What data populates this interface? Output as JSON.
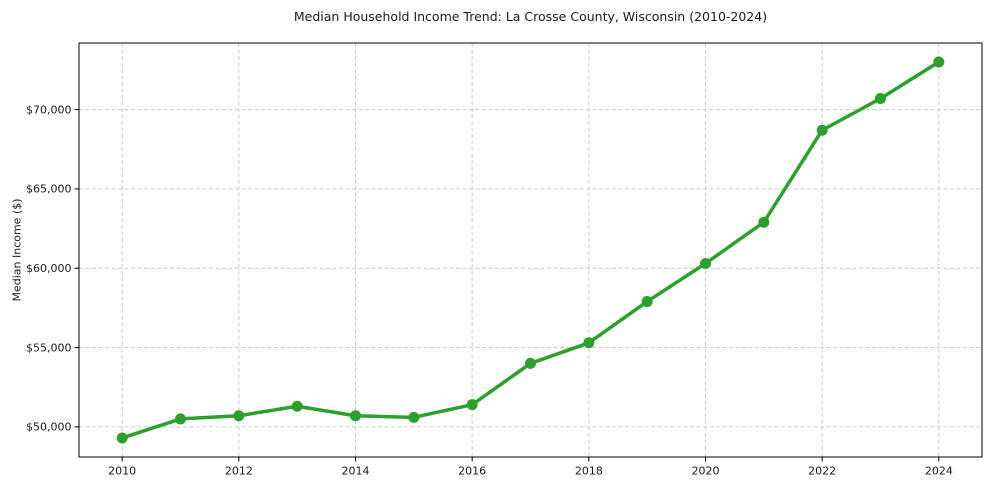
{
  "chart_data": {
    "type": "line",
    "title": "Median Household Income Trend: La Crosse County, Wisconsin (2010-2024)",
    "xlabel": "",
    "ylabel": "Median Income ($)",
    "x": [
      2010,
      2011,
      2012,
      2013,
      2014,
      2015,
      2016,
      2017,
      2018,
      2019,
      2020,
      2021,
      2022,
      2023,
      2024
    ],
    "values": [
      49300,
      50500,
      50700,
      51300,
      50700,
      50600,
      51400,
      54000,
      55300,
      57900,
      60300,
      62900,
      68700,
      70700,
      73000
    ],
    "xlim": [
      2009.26,
      2024.74
    ],
    "ylim": [
      48100,
      74200
    ],
    "xticks": {
      "values": [
        2010,
        2012,
        2014,
        2016,
        2018,
        2020,
        2022,
        2024
      ],
      "labels": [
        "2010",
        "2012",
        "2014",
        "2016",
        "2018",
        "2020",
        "2022",
        "2024"
      ]
    },
    "yticks": {
      "values": [
        50000,
        55000,
        60000,
        65000,
        70000
      ],
      "labels": [
        "$50,000",
        "$55,000",
        "$60,000",
        "$65,000",
        "$70,000"
      ]
    },
    "grid": true,
    "legend": "none",
    "line_color": "#2ca02c",
    "marker_color": "#2ca02c",
    "grid_color": "#cccccc",
    "axis_color": "#000000",
    "background_color": "#ffffff"
  }
}
